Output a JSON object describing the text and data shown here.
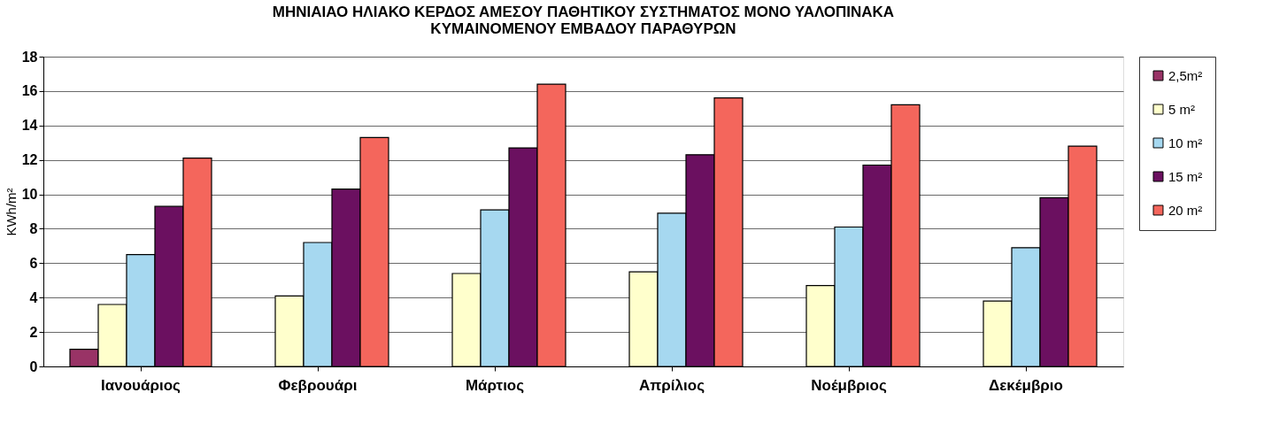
{
  "chart_data": {
    "type": "bar",
    "title": [
      "ΜΗΝΙΑΙΑΟ ΗΛΙΑΚΟ ΚΕΡΔΟΣ ΑΜΕΣΟΥ ΠΑΘΗΤΙΚΟΥ ΣΥΣΤΗΜΑΤΟΣ  ΜΟΝΟ ΥΑΛΟΠΙΝΑΚΑ",
      "ΚΥΜΑΙΝΟΜΕΝΟΥ ΕΜΒΑΔΟΥ ΠΑΡΑΘΥΡΩΝ"
    ],
    "ylabel": "KWh/m²",
    "categories": [
      "Ιανουάριος",
      "Φεβρουάρι",
      "Μάρτιος",
      "Απρίλιος",
      "Νοέμβριος",
      "Δεκέμβριο"
    ],
    "series": [
      {
        "name": "2,5m²",
        "color": "#993366",
        "values": [
          1.0,
          null,
          null,
          null,
          null,
          null
        ]
      },
      {
        "name": "5 m²",
        "color": "#ffffcc",
        "values": [
          3.6,
          4.1,
          5.4,
          5.5,
          4.7,
          3.8
        ]
      },
      {
        "name": "10 m²",
        "color": "#a6d8f0",
        "values": [
          6.5,
          7.2,
          9.1,
          8.9,
          8.1,
          6.9
        ]
      },
      {
        "name": "15 m²",
        "color": "#6b1060",
        "values": [
          9.3,
          10.3,
          12.7,
          12.3,
          11.7,
          9.8
        ]
      },
      {
        "name": "20 m²",
        "color": "#f4665c",
        "values": [
          12.1,
          13.3,
          16.4,
          15.6,
          15.2,
          12.8
        ]
      }
    ],
    "ylim": [
      0,
      18
    ],
    "yticks": [
      0,
      2,
      4,
      6,
      8,
      10,
      12,
      14,
      16,
      18
    ],
    "grid": "y",
    "legend": "right"
  }
}
